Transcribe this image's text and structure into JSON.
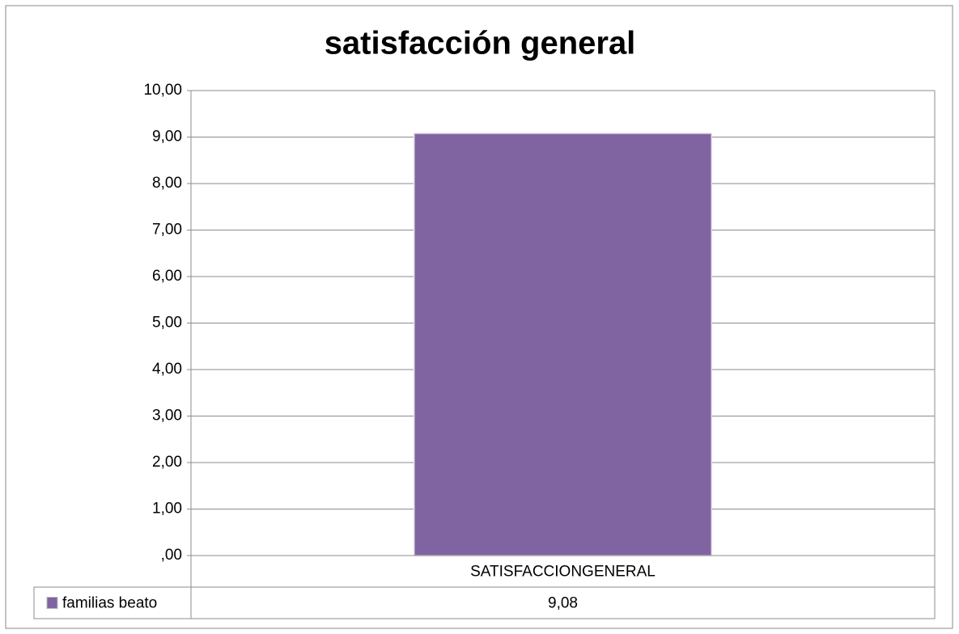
{
  "chart_data": {
    "type": "bar",
    "title": "satisfacción general",
    "categories": [
      "SATISFACCIONGENERAL"
    ],
    "series": [
      {
        "name": "familias beato",
        "color": "#8064a2",
        "values": [
          9.08
        ],
        "value_labels": [
          "9,08"
        ]
      }
    ],
    "ylim": [
      0,
      10
    ],
    "yticks": [
      {
        "value": 0,
        "label": ",00"
      },
      {
        "value": 1,
        "label": "1,00"
      },
      {
        "value": 2,
        "label": "2,00"
      },
      {
        "value": 3,
        "label": "3,00"
      },
      {
        "value": 4,
        "label": "4,00"
      },
      {
        "value": 5,
        "label": "5,00"
      },
      {
        "value": 6,
        "label": "6,00"
      },
      {
        "value": 7,
        "label": "7,00"
      },
      {
        "value": 8,
        "label": "8,00"
      },
      {
        "value": 9,
        "label": "9,00"
      },
      {
        "value": 10,
        "label": "10,00"
      }
    ],
    "grid": true
  }
}
